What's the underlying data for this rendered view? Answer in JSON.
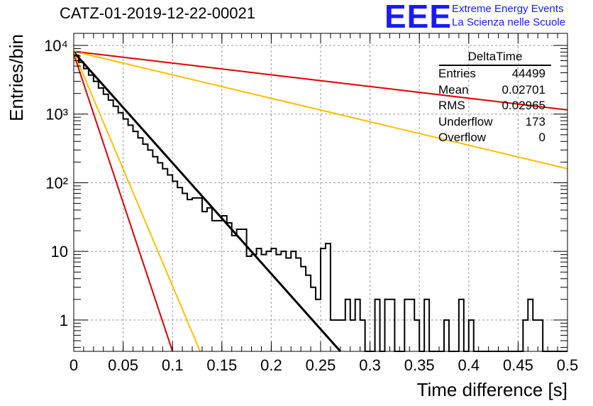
{
  "header": {
    "title": "CATZ-01-2019-12-22-00021",
    "logo": "EEE",
    "logo_line1": "Extreme Energy Events",
    "logo_line2": "La Scienza nelle Scuole"
  },
  "stats_box": {
    "title": "DeltaTime",
    "rows": [
      {
        "label": "Entries",
        "value": "44499"
      },
      {
        "label": "Mean",
        "value": "0.02701"
      },
      {
        "label": "RMS",
        "value": "0.02965"
      },
      {
        "label": "Underflow",
        "value": "173"
      },
      {
        "label": "Overflow",
        "value": "0"
      }
    ]
  },
  "colors": {
    "histogram": "#000000",
    "fit_main": "#000000",
    "fit_red": "#e00000",
    "fit_orange": "#ffc000",
    "grid": "#999999"
  },
  "chart_data": {
    "type": "line",
    "title": "CATZ-01-2019-12-22-00021",
    "xlabel": "Time difference [s]",
    "ylabel": "Entries/bin",
    "xlim": [
      0,
      0.5
    ],
    "ylim": [
      0.35,
      15000
    ],
    "yscale": "log",
    "grid": true,
    "legend": "none",
    "x_ticks": [
      "0",
      "0.05",
      "0.1",
      "0.15",
      "0.2",
      "0.25",
      "0.3",
      "0.35",
      "0.4",
      "0.45",
      "0.5"
    ],
    "y_ticks": [
      "1",
      "10",
      "10²",
      "10³",
      "10⁴"
    ],
    "histogram": {
      "name": "DeltaTime",
      "bin_width": 0.005,
      "values": [
        7200,
        5700,
        4600,
        3700,
        3000,
        2400,
        1950,
        1600,
        1300,
        1050,
        850,
        690,
        560,
        450,
        365,
        300,
        240,
        195,
        160,
        130,
        105,
        85,
        70,
        57,
        60,
        60,
        38,
        43,
        28,
        28,
        33,
        26,
        17,
        21,
        21,
        8.5,
        9,
        11,
        9,
        10,
        11,
        9,
        10,
        8,
        10,
        8,
        6,
        4.5,
        3,
        2,
        11,
        13,
        1,
        1,
        1,
        2,
        1,
        2,
        1,
        0,
        0,
        2,
        0,
        2,
        2,
        0,
        0,
        2,
        2,
        1,
        0,
        2,
        0,
        0,
        0,
        1,
        0,
        0,
        2,
        0,
        1,
        0,
        0,
        0,
        0,
        0,
        0,
        0,
        0,
        0,
        0,
        1,
        2,
        1,
        1,
        0,
        0,
        0,
        0,
        0
      ]
    },
    "series": [
      {
        "x": [
          0,
          0.27
        ],
        "y": [
          8000,
          0.35
        ]
      },
      {
        "x": [
          0,
          0.1
        ],
        "y": [
          7500,
          0.35
        ]
      },
      {
        "x": [
          0,
          0.128
        ],
        "y": [
          8000,
          0.35
        ]
      },
      {
        "x": [
          0,
          0.5
        ],
        "y": [
          8200,
          1150
        ]
      },
      {
        "x": [
          0,
          0.5
        ],
        "y": [
          8200,
          160
        ]
      }
    ]
  }
}
